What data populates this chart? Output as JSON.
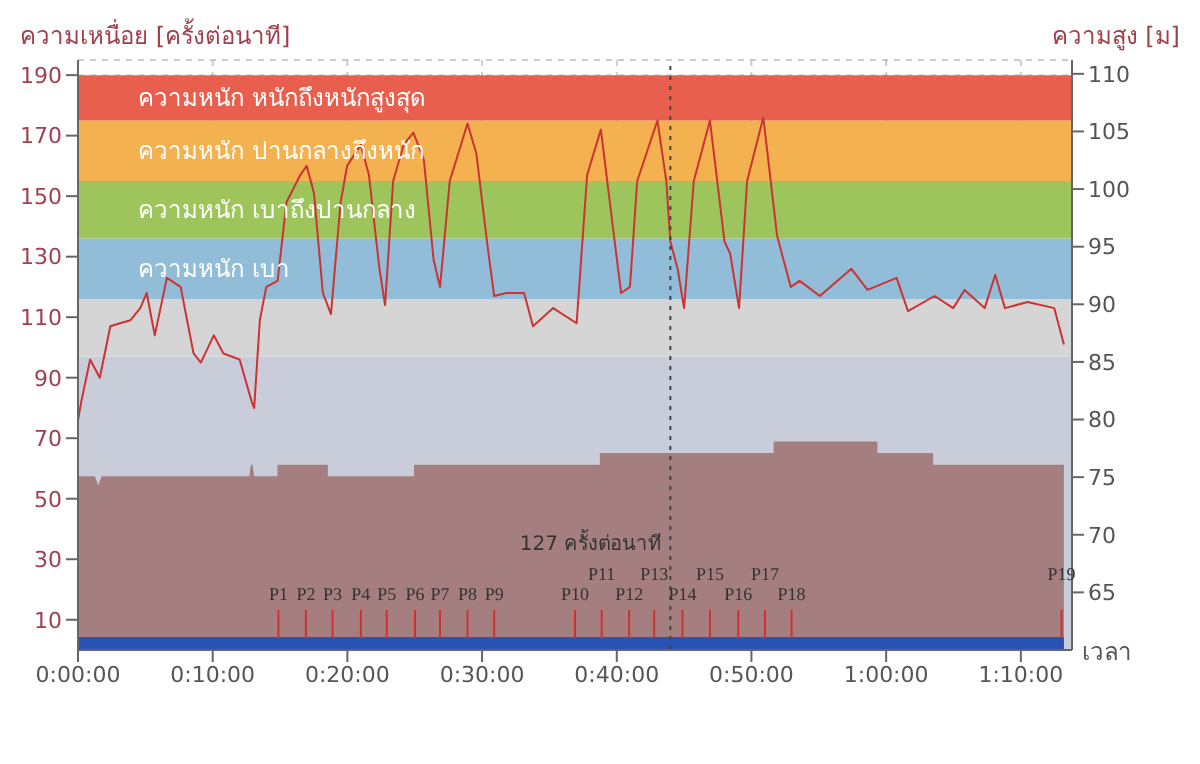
{
  "chart_data": {
    "type": "area",
    "ylabel": "ความเหนื่อย [ครั้งต่อนาที]",
    "y2label": "ความสูง [ม]",
    "xlabel": "เวลา",
    "xlim": [
      0,
      1.23
    ],
    "xticks": [
      {
        "value": 0,
        "label": "0:00:00"
      },
      {
        "value": 0.1667,
        "label": "0:10:00"
      },
      {
        "value": 0.3333,
        "label": "0:20:00"
      },
      {
        "value": 0.5,
        "label": "0:30:00"
      },
      {
        "value": 0.6667,
        "label": "0:40:00"
      },
      {
        "value": 0.8333,
        "label": "0:50:00"
      },
      {
        "value": 1,
        "label": "1:00:00"
      },
      {
        "value": 1.1667,
        "label": "1:10:00"
      }
    ],
    "ylim": [
      0,
      195
    ],
    "yticks": [
      10,
      30,
      50,
      70,
      90,
      110,
      130,
      150,
      170,
      190
    ],
    "y2lim": [
      60,
      111.2
    ],
    "y2ticks": [
      65,
      70,
      75,
      80,
      85,
      90,
      95,
      100,
      105,
      110
    ],
    "grid": true,
    "bands": [
      {
        "axis": "y",
        "from": 0,
        "to": 97,
        "color": "#c9cdd9"
      },
      {
        "axis": "y",
        "from": 97,
        "to": 116,
        "color": "#d5d5d5"
      },
      {
        "axis": "y",
        "from": 116,
        "to": 136,
        "label": "ความหนัก เบา",
        "color": "#92bdd8"
      },
      {
        "axis": "y",
        "from": 136,
        "to": 155,
        "label": "ความหนัก เบาถึงปานกลาง",
        "color": "#9dc55c"
      },
      {
        "axis": "y",
        "from": 155,
        "to": 175,
        "label": "ความหนัก ปานกลางถึงหนัก",
        "color": "#f4b14f"
      },
      {
        "axis": "y",
        "from": 175,
        "to": 190,
        "label": "ความหนัก หนักถึงหนักสูงสุด",
        "color": "#e8604d"
      }
    ],
    "ref_lines": [
      {
        "axis": "x",
        "value": 0.733,
        "label": "127 ครั้งต่อนาที",
        "color": "#444444",
        "line_style": "dotted"
      },
      {
        "axis": "x",
        "value": 0.248,
        "label": "P1",
        "color": "#d03030"
      },
      {
        "axis": "x",
        "value": 0.282,
        "label": "P2",
        "color": "#d03030"
      },
      {
        "axis": "x",
        "value": 0.315,
        "label": "P3",
        "color": "#d03030"
      },
      {
        "axis": "x",
        "value": 0.35,
        "label": "P4",
        "color": "#d03030"
      },
      {
        "axis": "x",
        "value": 0.382,
        "label": "P5",
        "color": "#d03030"
      },
      {
        "axis": "x",
        "value": 0.417,
        "label": "P6",
        "color": "#d03030"
      },
      {
        "axis": "x",
        "value": 0.448,
        "label": "P7",
        "color": "#d03030"
      },
      {
        "axis": "x",
        "value": 0.482,
        "label": "P8",
        "color": "#d03030"
      },
      {
        "axis": "x",
        "value": 0.515,
        "label": "P9",
        "color": "#d03030"
      },
      {
        "axis": "x",
        "value": 0.615,
        "label": "P10",
        "color": "#d03030"
      },
      {
        "axis": "x",
        "value": 0.648,
        "label": "P11",
        "color": "#d03030"
      },
      {
        "axis": "x",
        "value": 0.682,
        "label": "P12",
        "color": "#d03030"
      },
      {
        "axis": "x",
        "value": 0.713,
        "label": "P13",
        "color": "#d03030"
      },
      {
        "axis": "x",
        "value": 0.748,
        "label": "P14",
        "color": "#d03030"
      },
      {
        "axis": "x",
        "value": 0.782,
        "label": "P15",
        "color": "#d03030"
      },
      {
        "axis": "x",
        "value": 0.817,
        "label": "P16",
        "color": "#d03030"
      },
      {
        "axis": "x",
        "value": 0.85,
        "label": "P17",
        "color": "#d03030"
      },
      {
        "axis": "x",
        "value": 0.883,
        "label": "P18",
        "color": "#d03030"
      },
      {
        "axis": "x",
        "value": 1.217,
        "label": "P19",
        "color": "#d03030"
      }
    ],
    "series": [
      {
        "type": "line",
        "color": "#cc3333",
        "x": [
          0,
          0.004,
          0.015,
          0.027,
          0.04,
          0.052,
          0.065,
          0.077,
          0.085,
          0.095,
          0.11,
          0.127,
          0.143,
          0.152,
          0.168,
          0.18,
          0.2,
          0.215,
          0.218,
          0.225,
          0.233,
          0.247,
          0.258,
          0.275,
          0.283,
          0.292,
          0.303,
          0.313,
          0.325,
          0.333,
          0.35,
          0.36,
          0.373,
          0.38,
          0.39,
          0.403,
          0.415,
          0.428,
          0.44,
          0.448,
          0.46,
          0.482,
          0.493,
          0.507,
          0.515,
          0.53,
          0.552,
          0.563,
          0.588,
          0.617,
          0.63,
          0.647,
          0.672,
          0.683,
          0.692,
          0.717,
          0.728,
          0.733,
          0.742,
          0.75,
          0.762,
          0.782,
          0.8,
          0.807,
          0.818,
          0.828,
          0.848,
          0.865,
          0.882,
          0.893,
          0.918,
          0.957,
          0.977,
          1.013,
          1.027,
          1.06,
          1.083,
          1.097,
          1.122,
          1.135,
          1.147,
          1.175,
          1.208,
          1.22
        ],
        "values": [
          76,
          82,
          96,
          90,
          107,
          108,
          109,
          113,
          118,
          104,
          123,
          120,
          98,
          95,
          104,
          98,
          96,
          82,
          80,
          109,
          120,
          122,
          148,
          157,
          160,
          151,
          118,
          111,
          148,
          160,
          167,
          157,
          126,
          114,
          155,
          167,
          171,
          162,
          129,
          120,
          155,
          174,
          164,
          133,
          117,
          118,
          118,
          107,
          113,
          108,
          157,
          172,
          118,
          120,
          155,
          175,
          155,
          135,
          126,
          113,
          155,
          175,
          135,
          131,
          113,
          155,
          176,
          137,
          120,
          122,
          117,
          126,
          119,
          123,
          112,
          117,
          113,
          119,
          113,
          124,
          113,
          115,
          113,
          101
        ]
      },
      {
        "color": "#a57f7f",
        "axis": "y2",
        "x": [
          0,
          0.02,
          0.025,
          0.03,
          0.213,
          0.215,
          0.217,
          0.248,
          0.248,
          0.308,
          0.308,
          0.417,
          0.417,
          0.647,
          0.647,
          0.862,
          0.862,
          0.988,
          0.988,
          1.057,
          1.057,
          1.22
        ],
        "values": [
          75,
          75,
          74,
          75,
          75,
          76,
          75,
          75,
          76,
          76,
          75,
          75,
          76,
          76,
          77,
          77,
          78,
          78,
          77,
          77,
          76,
          76
        ]
      },
      {
        "color": "#2a52b4",
        "x": [
          0,
          1.22
        ],
        "values": [
          4,
          4
        ]
      }
    ]
  }
}
